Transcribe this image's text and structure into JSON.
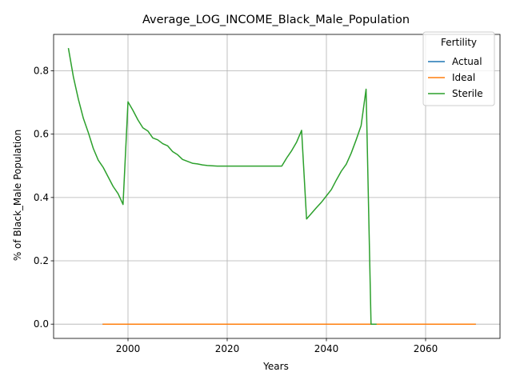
{
  "chart_data": {
    "type": "line",
    "title": "Average_LOG_INCOME_Black_Male_Population",
    "xlabel": "Years",
    "ylabel": "% of Black_Male Population",
    "xlim": [
      1985,
      2075
    ],
    "ylim": [
      -0.045,
      0.915
    ],
    "x_ticks": [
      2000,
      2020,
      2040,
      2060
    ],
    "y_ticks": [
      0.0,
      0.2,
      0.4,
      0.6,
      0.8
    ],
    "y_tick_labels": [
      "0.0",
      "0.2",
      "0.4",
      "0.6",
      "0.8"
    ],
    "grid": true,
    "legend": {
      "title": "Fertility",
      "placement": "top-right"
    },
    "series": [
      {
        "name": "Actual",
        "color": "#1f77b4",
        "x": [
          1995,
          2070
        ],
        "y": [
          0.0,
          0.0
        ]
      },
      {
        "name": "Ideal",
        "color": "#ff7f0e",
        "x": [
          1995,
          2000,
          2010,
          2020,
          2030,
          2040,
          2050,
          2060,
          2070
        ],
        "y": [
          0.0,
          0.0,
          0.0,
          0.0,
          0.0,
          0.0,
          0.0,
          0.0,
          0.0
        ]
      },
      {
        "name": "Sterile",
        "color": "#2ca02c",
        "x": [
          1988,
          1989,
          1990,
          1991,
          1992,
          1993,
          1994,
          1995,
          1996,
          1997,
          1998,
          1999,
          2000,
          2001,
          2002,
          2003,
          2004,
          2005,
          2006,
          2007,
          2008,
          2009,
          2010,
          2011,
          2012,
          2013,
          2014,
          2015,
          2016,
          2017,
          2018,
          2019,
          2020,
          2021,
          2022,
          2023,
          2024,
          2025,
          2026,
          2027,
          2028,
          2029,
          2030,
          2031,
          2032,
          2033,
          2034,
          2035,
          2036,
          2037,
          2038,
          2039,
          2040,
          2041,
          2042,
          2043,
          2044,
          2045,
          2046,
          2047,
          2048,
          2049,
          2050
        ],
        "y": [
          0.87,
          0.78,
          0.71,
          0.65,
          0.605,
          0.555,
          0.518,
          0.495,
          0.465,
          0.435,
          0.412,
          0.378,
          0.702,
          0.675,
          0.645,
          0.62,
          0.61,
          0.588,
          0.582,
          0.57,
          0.563,
          0.545,
          0.535,
          0.52,
          0.514,
          0.508,
          0.506,
          0.503,
          0.501,
          0.5,
          0.499,
          0.499,
          0.499,
          0.499,
          0.499,
          0.499,
          0.499,
          0.499,
          0.499,
          0.499,
          0.499,
          0.499,
          0.499,
          0.499,
          0.525,
          0.548,
          0.575,
          0.612,
          0.332,
          0.35,
          0.368,
          0.385,
          0.405,
          0.425,
          0.455,
          0.483,
          0.505,
          0.54,
          0.582,
          0.627,
          0.742,
          0.0,
          0.0
        ]
      }
    ]
  }
}
